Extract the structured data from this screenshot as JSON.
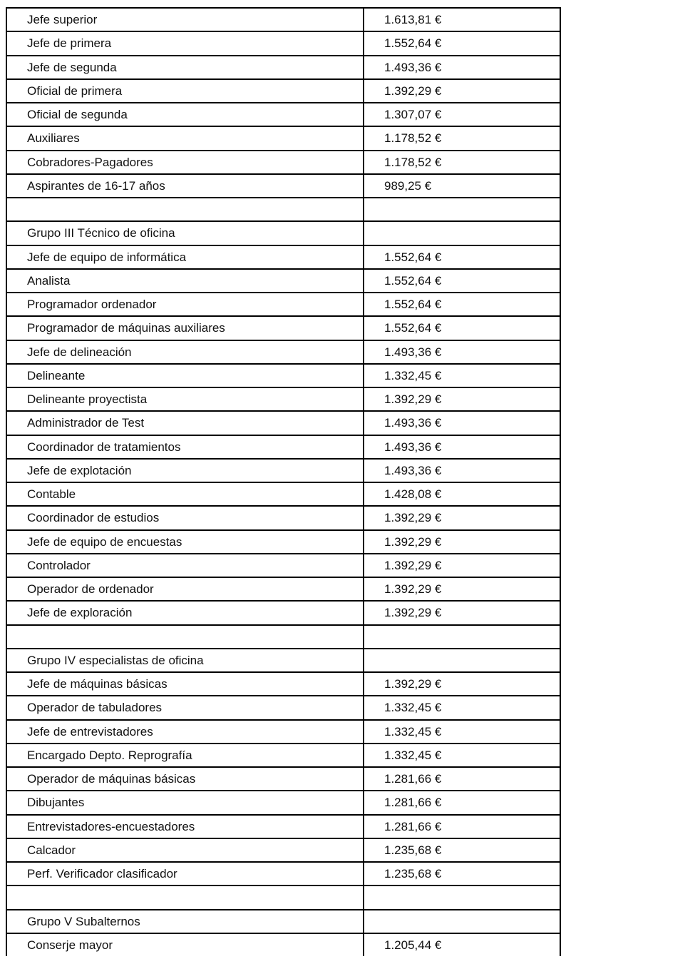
{
  "table": {
    "rows": [
      {
        "label": "Jefe superior",
        "value": "1.613,81 €"
      },
      {
        "label": "Jefe de primera",
        "value": "1.552,64 €"
      },
      {
        "label": "Jefe de segunda",
        "value": "1.493,36 €"
      },
      {
        "label": "Oficial de primera",
        "value": "1.392,29 €"
      },
      {
        "label": "Oficial de segunda",
        "value": "1.307,07 €"
      },
      {
        "label": "Auxiliares",
        "value": "1.178,52 €"
      },
      {
        "label": "Cobradores-Pagadores",
        "value": "1.178,52 €"
      },
      {
        "label": "Aspirantes de 16-17 años",
        "value": "989,25 €"
      },
      {
        "label": "",
        "value": ""
      },
      {
        "label": "Grupo III Técnico de oficina",
        "value": ""
      },
      {
        "label": "Jefe de equipo de informática",
        "value": "1.552,64 €"
      },
      {
        "label": "Analista",
        "value": "1.552,64 €"
      },
      {
        "label": "Programador ordenador",
        "value": "1.552,64 €"
      },
      {
        "label": "Programador de máquinas auxiliares",
        "value": "1.552,64 €"
      },
      {
        "label": "Jefe de delineación",
        "value": "1.493,36 €"
      },
      {
        "label": "Delineante",
        "value": "1.332,45 €"
      },
      {
        "label": "Delineante proyectista",
        "value": "1.392,29 €"
      },
      {
        "label": "Administrador de Test",
        "value": "1.493,36 €"
      },
      {
        "label": "Coordinador de tratamientos",
        "value": "1.493,36 €"
      },
      {
        "label": "Jefe de explotación",
        "value": "1.493,36 €"
      },
      {
        "label": "Contable",
        "value": "1.428,08 €"
      },
      {
        "label": "Coordinador de estudios",
        "value": "1.392,29 €"
      },
      {
        "label": "Jefe de equipo de encuestas",
        "value": "1.392,29 €"
      },
      {
        "label": "Controlador",
        "value": "1.392,29 €"
      },
      {
        "label": "Operador de ordenador",
        "value": "1.392,29 €"
      },
      {
        "label": "Jefe de exploración",
        "value": "1.392,29 €"
      },
      {
        "label": "",
        "value": ""
      },
      {
        "label": "Grupo IV especialistas de oficina",
        "value": ""
      },
      {
        "label": "Jefe de máquinas básicas",
        "value": "1.392,29 €"
      },
      {
        "label": "Operador de tabuladores",
        "value": "1.332,45 €"
      },
      {
        "label": "Jefe de entrevistadores",
        "value": "1.332,45 €"
      },
      {
        "label": "Encargado Depto. Reprografía",
        "value": "1.332,45 €"
      },
      {
        "label": "Operador de máquinas básicas",
        "value": "1.281,66 €"
      },
      {
        "label": "Dibujantes",
        "value": "1.281,66 €"
      },
      {
        "label": "Entrevistadores-encuestadores",
        "value": "1.281,66 €"
      },
      {
        "label": "Calcador",
        "value": "1.235,68 €"
      },
      {
        "label": "Perf. Verificador clasificador",
        "value": "1.235,68 €"
      },
      {
        "label": "",
        "value": ""
      },
      {
        "label": "Grupo V Subalternos",
        "value": ""
      },
      {
        "label": "Conserje mayor",
        "value": "1.205,44 €"
      }
    ]
  }
}
